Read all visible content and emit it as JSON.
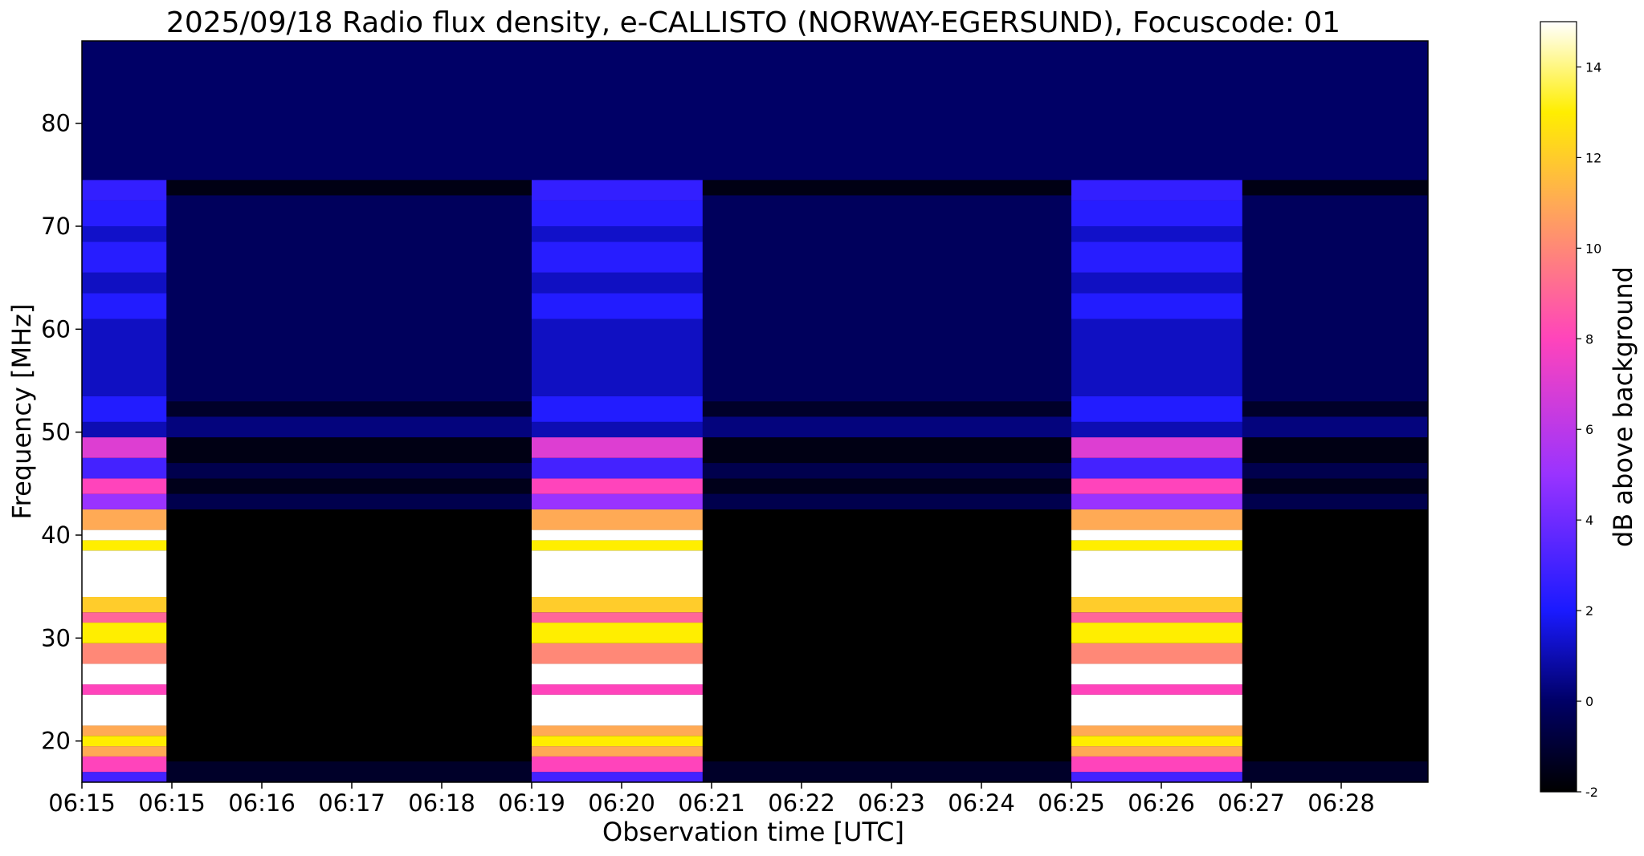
{
  "chart_data": {
    "type": "heatmap",
    "title": "2025/09/18  Radio flux density, e-CALLISTO (NORWAY-EGERSUND), Focuscode: 01",
    "xlabel": "Observation time [UTC]",
    "ylabel": "Frequency [MHz]",
    "x_ticks": [
      "06:15",
      "06:15",
      "06:16",
      "06:17",
      "06:18",
      "06:19",
      "06:20",
      "06:21",
      "06:22",
      "06:23",
      "06:24",
      "06:25",
      "06:26",
      "06:27",
      "06:28"
    ],
    "y_ticks": [
      20,
      30,
      40,
      50,
      60,
      70,
      80
    ],
    "ylim": [
      16,
      88
    ],
    "colorbar": {
      "label": "dB above background",
      "range": [
        -2,
        15
      ],
      "ticks": [
        -2,
        0,
        2,
        4,
        6,
        8,
        10,
        12,
        14
      ],
      "stops": [
        {
          "v": -2,
          "color": "#000000"
        },
        {
          "v": 0,
          "color": "#000066"
        },
        {
          "v": 2,
          "color": "#1a1aff"
        },
        {
          "v": 5,
          "color": "#9933ff"
        },
        {
          "v": 8,
          "color": "#ff44bb"
        },
        {
          "v": 11,
          "color": "#ffaa55"
        },
        {
          "v": 13,
          "color": "#ffee00"
        },
        {
          "v": 15,
          "color": "#ffffff"
        }
      ]
    },
    "active_intervals_x_index": [
      [
        0,
        0.94
      ],
      [
        5.0,
        6.9
      ],
      [
        11.0,
        12.9
      ]
    ],
    "active_profile": [
      {
        "f0": 16,
        "f1": 17,
        "v": 3
      },
      {
        "f0": 17,
        "f1": 18.5,
        "v": 8
      },
      {
        "f0": 18.5,
        "f1": 19.5,
        "v": 11
      },
      {
        "f0": 19.5,
        "f1": 20.5,
        "v": 13
      },
      {
        "f0": 20.5,
        "f1": 21.5,
        "v": 11
      },
      {
        "f0": 21.5,
        "f1": 24.5,
        "v": 15
      },
      {
        "f0": 24.5,
        "f1": 25.5,
        "v": 8
      },
      {
        "f0": 25.5,
        "f1": 27.5,
        "v": 15
      },
      {
        "f0": 27.5,
        "f1": 29.5,
        "v": 10
      },
      {
        "f0": 29.5,
        "f1": 31.5,
        "v": 13
      },
      {
        "f0": 31.5,
        "f1": 32.5,
        "v": 9
      },
      {
        "f0": 32.5,
        "f1": 34.0,
        "v": 12
      },
      {
        "f0": 34.0,
        "f1": 38.5,
        "v": 15
      },
      {
        "f0": 38.5,
        "f1": 39.5,
        "v": 13
      },
      {
        "f0": 39.5,
        "f1": 40.5,
        "v": 15
      },
      {
        "f0": 40.5,
        "f1": 42.5,
        "v": 11
      },
      {
        "f0": 42.5,
        "f1": 44.0,
        "v": 5
      },
      {
        "f0": 44.0,
        "f1": 45.5,
        "v": 8
      },
      {
        "f0": 45.5,
        "f1": 47.5,
        "v": 3
      },
      {
        "f0": 47.5,
        "f1": 49.5,
        "v": 7
      },
      {
        "f0": 49.5,
        "f1": 51.0,
        "v": 1
      },
      {
        "f0": 51.0,
        "f1": 53.5,
        "v": 2.2
      },
      {
        "f0": 53.5,
        "f1": 61.0,
        "v": 1.2
      },
      {
        "f0": 61.0,
        "f1": 63.5,
        "v": 2.2
      },
      {
        "f0": 63.5,
        "f1": 65.5,
        "v": 1.2
      },
      {
        "f0": 65.5,
        "f1": 68.5,
        "v": 2.3
      },
      {
        "f0": 68.5,
        "f1": 70.0,
        "v": 1.3
      },
      {
        "f0": 70.0,
        "f1": 72.5,
        "v": 2.3
      },
      {
        "f0": 72.5,
        "f1": 74.5,
        "v": 2.6
      },
      {
        "f0": 74.5,
        "f1": 88.0,
        "v": 0
      }
    ],
    "quiet_profile": [
      {
        "f0": 16,
        "f1": 18,
        "v": -1.2
      },
      {
        "f0": 18,
        "f1": 42.5,
        "v": -2
      },
      {
        "f0": 42.5,
        "f1": 44.0,
        "v": -0.5
      },
      {
        "f0": 44.0,
        "f1": 45.5,
        "v": -1.5
      },
      {
        "f0": 45.5,
        "f1": 47.0,
        "v": -0.5
      },
      {
        "f0": 47.0,
        "f1": 49.5,
        "v": -1.6
      },
      {
        "f0": 49.5,
        "f1": 51.5,
        "v": 0.3
      },
      {
        "f0": 51.5,
        "f1": 53.0,
        "v": -1.2
      },
      {
        "f0": 53.0,
        "f1": 73.0,
        "v": -0.2
      },
      {
        "f0": 73.0,
        "f1": 74.5,
        "v": -1.6
      },
      {
        "f0": 74.5,
        "f1": 88.0,
        "v": 0
      }
    ]
  }
}
